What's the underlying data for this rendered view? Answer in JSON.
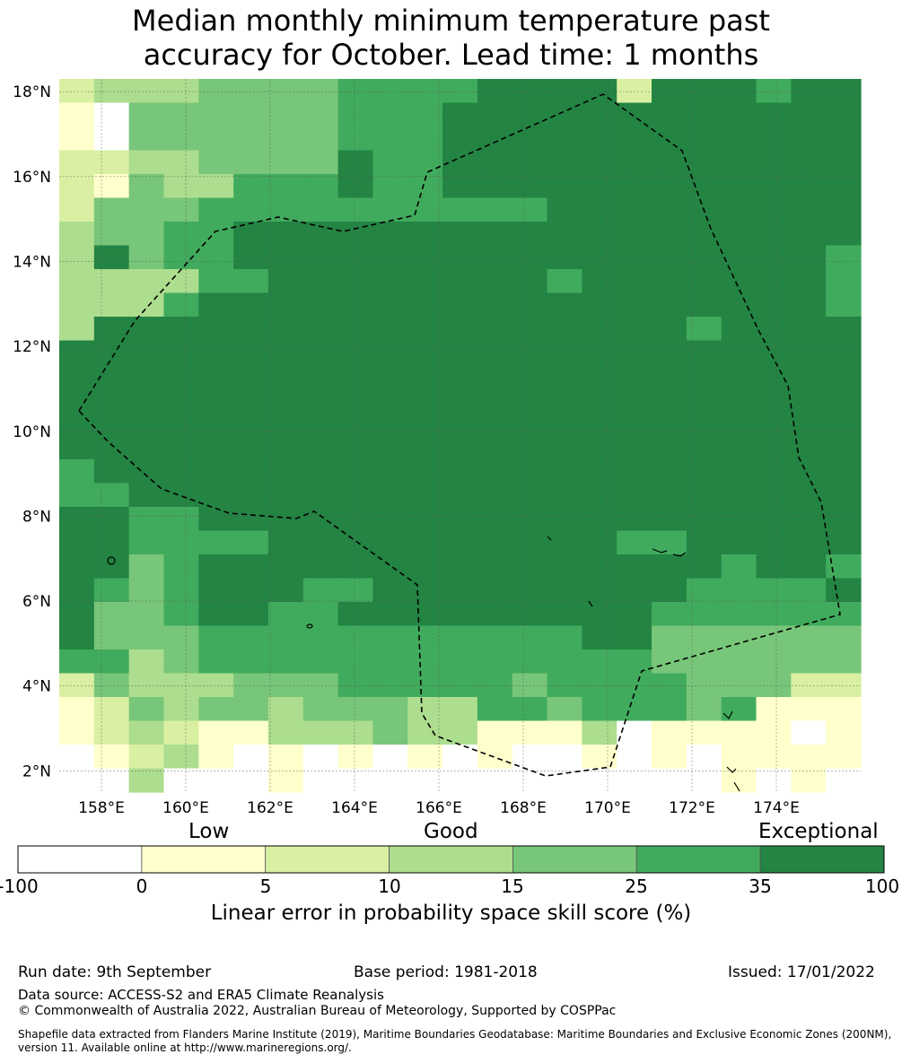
{
  "title": {
    "line1": "Median monthly minimum temperature past",
    "line2": "accuracy for October. Lead time: 1 months"
  },
  "map": {
    "lat_labels": [
      "18°N",
      "16°N",
      "14°N",
      "12°N",
      "10°N",
      "8°N",
      "6°N",
      "4°N",
      "2°N"
    ],
    "lon_labels": [
      "158°E",
      "160°E",
      "162°E",
      "164°E",
      "166°E",
      "168°E",
      "170°E",
      "172°E",
      "174°E"
    ],
    "lon_range": [
      157.0,
      176.0
    ],
    "lat_range": [
      1.5,
      18.3
    ],
    "grid_cells": {
      "cols": 23,
      "rows": 30,
      "class_legend": "0=<0, 1=0-5, 2=5-10, 3=10-15, 4=15-25, 5=25-35, 6=35-100",
      "data": [
        "23334444555566662666566",
        "10444444555666666666666",
        "10444444555666666666666",
        "22334444655666666666666",
        "21433555655666666666666",
        "24445555555555666666666",
        "34455666666666666666666",
        "36455666666666666666665",
        "33335566666666566666665",
        "33356666666666666666665",
        "36666666666666666656666",
        "66666666666666666666666",
        "66666666666666666666666",
        "66666666666666666666666",
        "66666666666666666666666",
        "66666666666666666666666",
        "56666666666666666666666",
        "55666666666666666666666",
        "66556666666666666666666",
        "66555566666666665566666",
        "66456666666666666665665",
        "65456665566666666655556",
        "64456655666666666555555",
        "64445555555555566444444",
        "55345555555555555444444",
        "24333444555554555544422",
        "12434434443355455545111",
        "12321133343311130111101",
        "01231010101010010101111",
        "00300010000000000001010"
      ]
    },
    "colors": {
      "c0": "#ffffff",
      "c1": "#ffffcc",
      "c2": "#d9f0a3",
      "c3": "#addd8e",
      "c4": "#78c679",
      "c5": "#41ab5d",
      "c6": "#238443"
    }
  },
  "colorbar": {
    "category_labels": [
      "Low",
      "Good",
      "Exceptional"
    ],
    "tick_labels": [
      "-100",
      "0",
      "5",
      "10",
      "15",
      "25",
      "35",
      "100"
    ],
    "title": "Linear error in probability space skill score (%)"
  },
  "footer": {
    "run_date": "Run date: 9th September",
    "base_period": "Base period: 1981-2018",
    "issued": "Issued: 17/01/2022",
    "data_source": "Data source: ACCESS-S2 and ERA5 Climate Reanalysis",
    "copyright": "© Commonwealth of Australia 2022, Australian Bureau of Meteorology, Supported by COSPPac",
    "shapefile_line1": "Shapefile data extracted from Flanders Marine Institute (2019), Maritime Boundaries Geodatabase: Maritime Boundaries and Exclusive Economic Zones (200NM),",
    "shapefile_line2": "version 11. Available online at http://www.marineregions.org/."
  }
}
